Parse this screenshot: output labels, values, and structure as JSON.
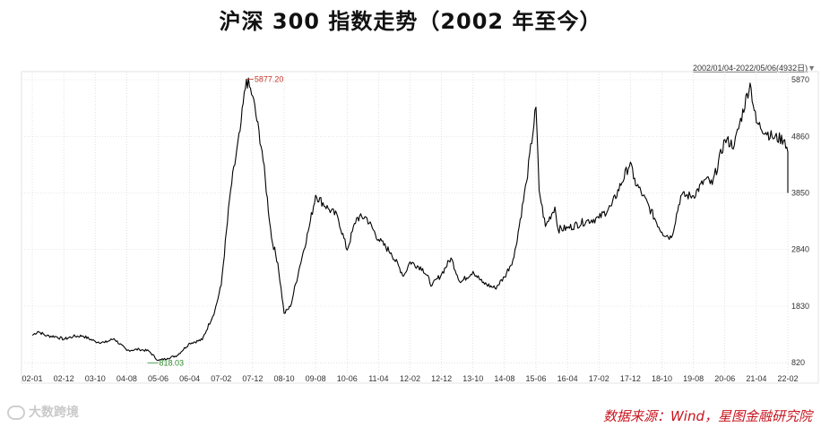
{
  "title": "沪深 300 指数走势（2002 年至今）",
  "range_label": "2002/01/04-2022/05/06(4932日)",
  "source": "数据来源：Wind，星图金融研究院",
  "watermark": "大数跨境",
  "colors": {
    "line": "#000000",
    "max_label": "#c0392b",
    "min_label": "#2e8b2e",
    "source": "#c8141e",
    "grid": "#cfcfcf"
  },
  "icons": {
    "dropdown": "triangle-down-icon",
    "watermark_logo": "logo-ring-icon"
  },
  "chart_data": {
    "type": "line",
    "title": "沪深 300 指数走势（2002 年至今）",
    "xlabel": "",
    "ylabel": "",
    "x_ticks": [
      "02-01",
      "02-12",
      "03-10",
      "04-08",
      "05-06",
      "06-04",
      "07-02",
      "07-12",
      "08-10",
      "09-08",
      "10-06",
      "11-04",
      "12-02",
      "12-12",
      "13-10",
      "14-08",
      "15-06",
      "16-04",
      "17-02",
      "17-12",
      "18-10",
      "19-08",
      "20-06",
      "21-04",
      "22-02"
    ],
    "y_ticks": [
      820,
      1830,
      2840,
      3850,
      4860,
      5870
    ],
    "ylim": [
      680,
      5950
    ],
    "y_axis_position": "right",
    "grid": true,
    "annotations": [
      {
        "label": "5877.20",
        "x": "07-10",
        "value": 5877.2,
        "type": "max"
      },
      {
        "label": "818.03",
        "x": "05-06",
        "value": 818.03,
        "type": "min"
      }
    ],
    "series": [
      {
        "x": [
          "02-01",
          "02-03",
          "02-06",
          "02-09",
          "02-12",
          "03-03",
          "03-06",
          "03-10",
          "04-01",
          "04-04",
          "04-08",
          "04-12",
          "05-03",
          "05-06",
          "05-09",
          "05-12",
          "06-04",
          "06-08",
          "06-12",
          "07-02",
          "07-05",
          "07-08",
          "07-10",
          "07-12",
          "08-03",
          "08-06",
          "08-08",
          "08-10",
          "08-12",
          "09-03",
          "09-06",
          "09-08",
          "09-12",
          "10-03",
          "10-06",
          "10-09",
          "10-12",
          "11-04",
          "11-08",
          "11-12",
          "12-02",
          "12-06",
          "12-09",
          "12-12",
          "13-03",
          "13-06",
          "13-10",
          "14-01",
          "14-05",
          "14-08",
          "14-11",
          "15-03",
          "15-06",
          "15-07",
          "15-09",
          "15-12",
          "16-01",
          "16-04",
          "16-10",
          "17-02",
          "17-06",
          "17-12",
          "18-01",
          "18-04",
          "18-10",
          "19-01",
          "19-04",
          "19-08",
          "19-12",
          "20-02",
          "20-06",
          "20-09",
          "21-02",
          "21-04",
          "21-09",
          "22-01",
          "22-02",
          "22-04",
          "22-05"
        ],
        "values": [
          1310,
          1380,
          1300,
          1290,
          1240,
          1290,
          1300,
          1200,
          1180,
          1250,
          1040,
          1060,
          1030,
          860,
          900,
          950,
          1170,
          1230,
          1750,
          2200,
          3900,
          4950,
          5877,
          5580,
          4600,
          3050,
          2600,
          1700,
          1820,
          2550,
          3250,
          3810,
          3570,
          3430,
          2830,
          3400,
          3420,
          3020,
          2780,
          2370,
          2620,
          2500,
          2200,
          2400,
          2690,
          2250,
          2450,
          2250,
          2150,
          2350,
          2700,
          4050,
          5380,
          3900,
          3250,
          3600,
          3200,
          3220,
          3350,
          3400,
          3620,
          4400,
          4100,
          3800,
          3150,
          3050,
          3800,
          3800,
          4100,
          4000,
          4800,
          4700,
          5810,
          5100,
          4850,
          4800,
          4580,
          3900,
          3850
        ]
      }
    ]
  }
}
